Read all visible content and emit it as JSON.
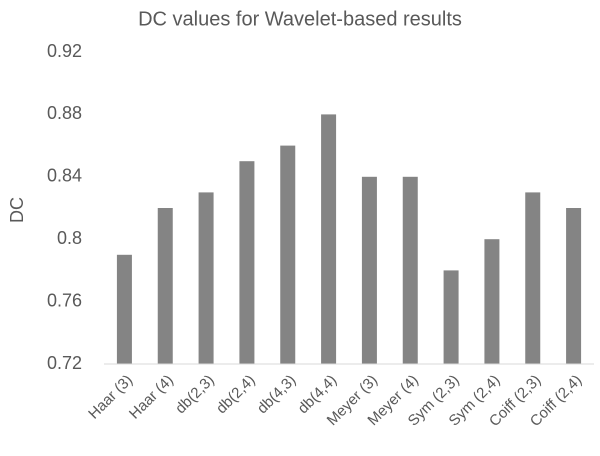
{
  "chart_data": {
    "type": "bar",
    "title": "DC values for Wavelet-based results",
    "y_label": "DC",
    "categories": [
      "Haar (3)",
      "Haar (4)",
      "db(2,3)",
      "db(2,4)",
      "db(4,3)",
      "db(4,4)",
      "Meyer (3)",
      "Meyer (4)",
      "Sym (2,3)",
      "Sym (2,4)",
      "Coiff (2,3)",
      "Coiff (2,4)"
    ],
    "values": [
      0.79,
      0.82,
      0.83,
      0.85,
      0.86,
      0.88,
      0.84,
      0.84,
      0.78,
      0.8,
      0.83,
      0.82
    ],
    "color": "#848484",
    "ylim": [
      0.72,
      0.92
    ],
    "yticks": [
      0.72,
      0.76,
      0.8,
      0.84,
      0.88,
      0.92
    ]
  }
}
